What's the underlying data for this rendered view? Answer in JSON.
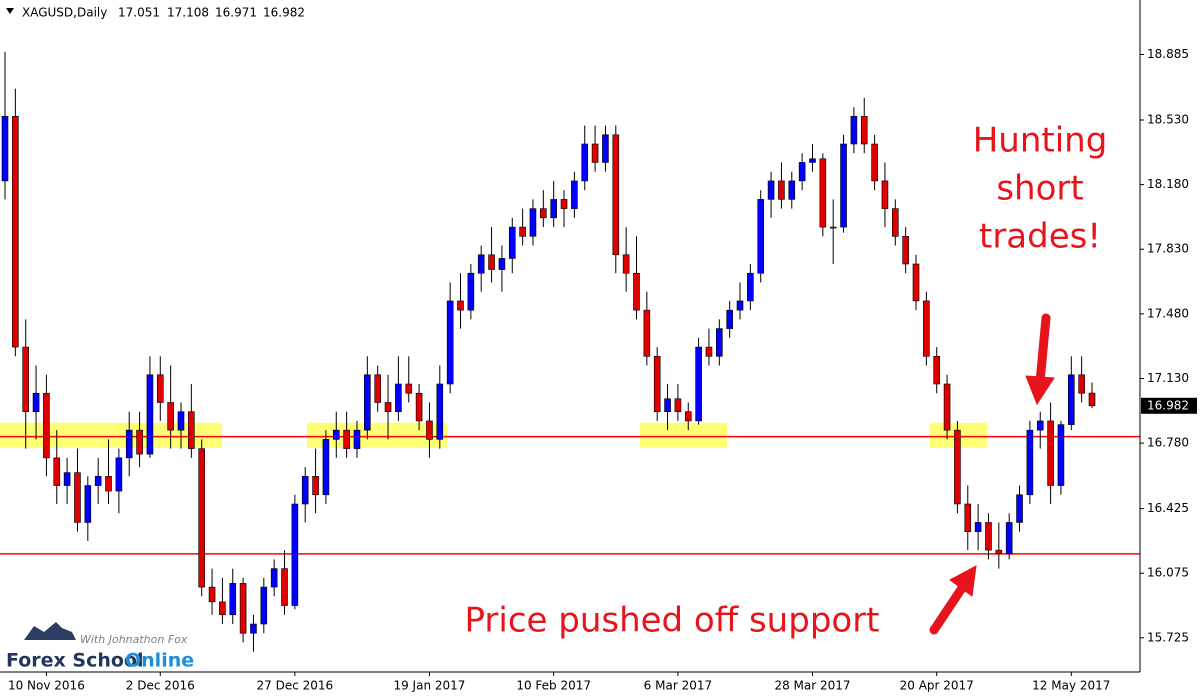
{
  "chart_data": {
    "type": "candlestick",
    "symbol": "XAGUSD,Daily",
    "ylim": [
      15.54,
      19.18
    ],
    "yticks": [
      18.885,
      {
        "value": 18.53,
        "label": "18.530"
      },
      {
        "value": 18.18,
        "label": "18.180"
      },
      {
        "value": 17.83,
        "label": "17.830"
      },
      {
        "value": 17.48,
        "label": "17.480"
      },
      {
        "value": 17.13,
        "label": "17.130"
      },
      {
        "value": 16.78,
        "label": "16.780"
      },
      16.425,
      16.075,
      15.725
    ],
    "up_color": "#0000ff",
    "down_color": "#e00000",
    "categories": [
      null,
      null,
      null,
      null,
      "10 Nov 2016",
      null,
      null,
      null,
      null,
      null,
      null,
      null,
      null,
      null,
      null,
      "2 Dec 2016",
      null,
      null,
      null,
      null,
      null,
      null,
      null,
      null,
      null,
      null,
      null,
      null,
      "27 Dec 2016",
      null,
      null,
      null,
      null,
      null,
      null,
      null,
      null,
      null,
      null,
      null,
      null,
      "19 Jan 2017",
      null,
      null,
      null,
      null,
      null,
      null,
      null,
      null,
      null,
      null,
      null,
      "10 Feb 2017",
      null,
      null,
      null,
      null,
      null,
      null,
      null,
      null,
      null,
      null,
      null,
      "6 Mar 2017",
      null,
      null,
      null,
      null,
      null,
      null,
      null,
      null,
      null,
      null,
      null,
      null,
      "28 Mar 2017",
      null,
      null,
      null,
      null,
      null,
      null,
      null,
      null,
      null,
      null,
      null,
      "20 Apr 2017",
      null,
      null,
      null,
      null,
      null,
      null,
      null,
      null,
      null,
      null,
      null,
      null,
      "12 May 2017",
      null,
      null
    ],
    "ohlc": [
      [
        18.2,
        18.9,
        18.1,
        18.55
      ],
      [
        18.55,
        18.7,
        17.25,
        17.3
      ],
      [
        17.3,
        17.45,
        16.75,
        16.95
      ],
      [
        16.95,
        17.2,
        16.8,
        17.05
      ],
      [
        17.05,
        17.15,
        16.6,
        16.7
      ],
      [
        16.7,
        16.85,
        16.45,
        16.55
      ],
      [
        16.55,
        16.7,
        16.45,
        16.62
      ],
      [
        16.62,
        16.75,
        16.3,
        16.35
      ],
      [
        16.35,
        16.6,
        16.25,
        16.55
      ],
      [
        16.55,
        16.7,
        16.45,
        16.6
      ],
      [
        16.6,
        16.8,
        16.45,
        16.52
      ],
      [
        16.52,
        16.75,
        16.4,
        16.7
      ],
      [
        16.7,
        16.95,
        16.6,
        16.85
      ],
      [
        16.85,
        16.95,
        16.65,
        16.72
      ],
      [
        16.72,
        17.25,
        16.7,
        17.15
      ],
      [
        17.15,
        17.25,
        16.9,
        17.0
      ],
      [
        17.0,
        17.2,
        16.75,
        16.85
      ],
      [
        16.85,
        17.0,
        16.75,
        16.95
      ],
      [
        16.95,
        17.1,
        16.7,
        16.75
      ],
      [
        16.75,
        16.8,
        15.95,
        16.0
      ],
      [
        16.0,
        16.1,
        15.85,
        15.92
      ],
      [
        15.92,
        16.05,
        15.8,
        15.85
      ],
      [
        15.85,
        16.1,
        15.8,
        16.02
      ],
      [
        16.02,
        16.05,
        15.7,
        15.75
      ],
      [
        15.75,
        15.85,
        15.65,
        15.8
      ],
      [
        15.8,
        16.05,
        15.75,
        16.0
      ],
      [
        16.0,
        16.15,
        15.95,
        16.1
      ],
      [
        16.1,
        16.2,
        15.85,
        15.9
      ],
      [
        15.9,
        16.5,
        15.88,
        16.45
      ],
      [
        16.45,
        16.65,
        16.35,
        16.6
      ],
      [
        16.6,
        16.75,
        16.4,
        16.5
      ],
      [
        16.5,
        16.85,
        16.45,
        16.8
      ],
      [
        16.8,
        16.95,
        16.7,
        16.85
      ],
      [
        16.85,
        16.95,
        16.7,
        16.75
      ],
      [
        16.75,
        16.9,
        16.7,
        16.85
      ],
      [
        16.85,
        17.25,
        16.8,
        17.15
      ],
      [
        17.15,
        17.2,
        16.95,
        17.0
      ],
      [
        17.0,
        17.15,
        16.8,
        16.95
      ],
      [
        16.95,
        17.25,
        16.9,
        17.1
      ],
      [
        17.1,
        17.25,
        17.0,
        17.05
      ],
      [
        17.05,
        17.1,
        16.85,
        16.9
      ],
      [
        16.9,
        17.0,
        16.7,
        16.8
      ],
      [
        16.8,
        17.2,
        16.75,
        17.1
      ],
      [
        17.1,
        17.65,
        17.05,
        17.55
      ],
      [
        17.55,
        17.7,
        17.4,
        17.5
      ],
      [
        17.5,
        17.75,
        17.45,
        17.7
      ],
      [
        17.7,
        17.85,
        17.6,
        17.8
      ],
      [
        17.8,
        17.95,
        17.65,
        17.72
      ],
      [
        17.72,
        17.85,
        17.6,
        17.78
      ],
      [
        17.78,
        18.0,
        17.7,
        17.95
      ],
      [
        17.95,
        18.05,
        17.85,
        17.9
      ],
      [
        17.9,
        18.1,
        17.85,
        18.05
      ],
      [
        18.05,
        18.15,
        17.95,
        18.0
      ],
      [
        18.0,
        18.2,
        17.95,
        18.1
      ],
      [
        18.1,
        18.15,
        17.95,
        18.05
      ],
      [
        18.05,
        18.25,
        18.0,
        18.2
      ],
      [
        18.2,
        18.5,
        18.15,
        18.4
      ],
      [
        18.4,
        18.5,
        18.25,
        18.3
      ],
      [
        18.3,
        18.5,
        18.25,
        18.45
      ],
      [
        18.45,
        18.5,
        17.7,
        17.8
      ],
      [
        17.8,
        17.95,
        17.6,
        17.7
      ],
      [
        17.7,
        17.9,
        17.45,
        17.5
      ],
      [
        17.5,
        17.6,
        17.2,
        17.25
      ],
      [
        17.25,
        17.3,
        16.9,
        16.95
      ],
      [
        16.95,
        17.1,
        16.85,
        17.02
      ],
      [
        17.02,
        17.1,
        16.9,
        16.95
      ],
      [
        16.95,
        17.0,
        16.85,
        16.9
      ],
      [
        16.9,
        17.35,
        16.88,
        17.3
      ],
      [
        17.3,
        17.4,
        17.2,
        17.25
      ],
      [
        17.25,
        17.45,
        17.2,
        17.4
      ],
      [
        17.4,
        17.55,
        17.35,
        17.5
      ],
      [
        17.5,
        17.65,
        17.45,
        17.55
      ],
      [
        17.55,
        17.75,
        17.5,
        17.7
      ],
      [
        17.7,
        18.15,
        17.65,
        18.1
      ],
      [
        18.1,
        18.25,
        18.0,
        18.2
      ],
      [
        18.2,
        18.3,
        18.05,
        18.1
      ],
      [
        18.1,
        18.25,
        18.05,
        18.2
      ],
      [
        18.2,
        18.35,
        18.15,
        18.3
      ],
      [
        18.3,
        18.4,
        18.25,
        18.32
      ],
      [
        18.32,
        18.35,
        17.9,
        17.95
      ],
      [
        17.95,
        18.1,
        17.75,
        17.95
      ],
      [
        17.95,
        18.45,
        17.92,
        18.4
      ],
      [
        18.4,
        18.6,
        18.35,
        18.55
      ],
      [
        18.55,
        18.65,
        18.35,
        18.4
      ],
      [
        18.4,
        18.45,
        18.15,
        18.2
      ],
      [
        18.2,
        18.3,
        17.95,
        18.05
      ],
      [
        18.05,
        18.1,
        17.85,
        17.9
      ],
      [
        17.9,
        17.95,
        17.7,
        17.75
      ],
      [
        17.75,
        17.8,
        17.5,
        17.55
      ],
      [
        17.55,
        17.6,
        17.2,
        17.25
      ],
      [
        17.25,
        17.3,
        17.05,
        17.1
      ],
      [
        17.1,
        17.15,
        16.8,
        16.85
      ],
      [
        16.85,
        16.9,
        16.4,
        16.45
      ],
      [
        16.45,
        16.55,
        16.2,
        16.3
      ],
      [
        16.3,
        16.45,
        16.2,
        16.35
      ],
      [
        16.35,
        16.4,
        16.15,
        16.2
      ],
      [
        16.2,
        16.35,
        16.1,
        16.18
      ],
      [
        16.18,
        16.4,
        16.15,
        16.35
      ],
      [
        16.35,
        16.55,
        16.3,
        16.5
      ],
      [
        16.5,
        16.9,
        16.45,
        16.85
      ],
      [
        16.85,
        16.95,
        16.75,
        16.9
      ],
      [
        16.9,
        17.0,
        16.45,
        16.55
      ],
      [
        16.55,
        16.9,
        16.5,
        16.88
      ],
      [
        16.88,
        17.25,
        16.85,
        17.15
      ],
      [
        17.15,
        17.25,
        17.0,
        17.05
      ],
      [
        17.051,
        17.108,
        16.971,
        16.982
      ]
    ],
    "levels": [
      16.815,
      16.18
    ],
    "level_color": "#ff0000",
    "zone": [
      16.755,
      16.89
    ],
    "zone_color": "#ffff66",
    "annotations": {
      "hunting": [
        "Hunting",
        "short",
        "trades!"
      ],
      "support": "Price pushed off support"
    },
    "logo": {
      "byline": "With Johnathon Fox",
      "name": "Forex School",
      "name2": "Online"
    }
  }
}
